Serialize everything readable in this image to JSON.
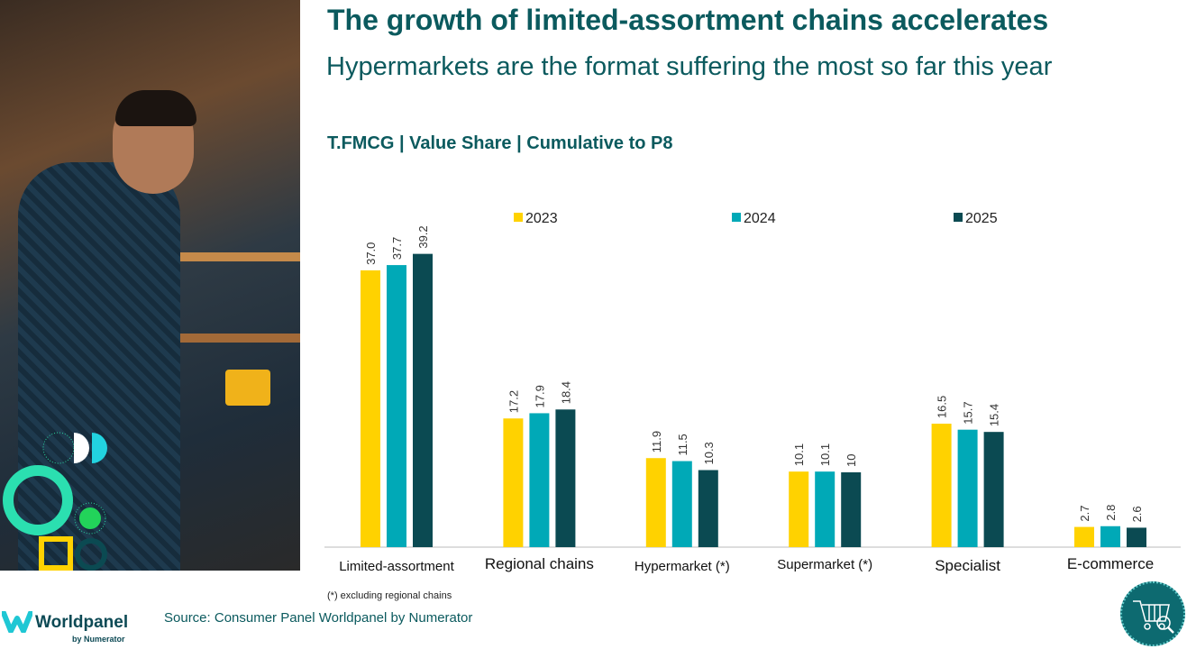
{
  "header": {
    "title": "The growth of limited-assortment chains accelerates",
    "subtitle": "Hypermarkets are the format suffering the most so far this year",
    "chart_subtitle": "T.FMCG | Value Share | Cumulative to P8"
  },
  "chart_data": {
    "type": "bar",
    "categories": [
      "Limited-assortment",
      "Regional chains",
      "Hypermarket (*)",
      "Supermarket (*)",
      "Specialist",
      "E-commerce"
    ],
    "series": [
      {
        "name": "2023",
        "color": "#ffd200",
        "values": [
          37.0,
          17.2,
          11.9,
          10.1,
          16.5,
          2.7
        ],
        "labels": [
          "37.0",
          "17.2",
          "11.9",
          "10.1",
          "16.5",
          "2.7"
        ]
      },
      {
        "name": "2024",
        "color": "#00a9b7",
        "values": [
          37.7,
          17.9,
          11.5,
          10.1,
          15.7,
          2.8
        ],
        "labels": [
          "37.7",
          "17.9",
          "11.5",
          "10.1",
          "15.7",
          "2.8"
        ]
      },
      {
        "name": "2025",
        "color": "#0b4a52",
        "values": [
          39.2,
          18.4,
          10.3,
          10,
          15.4,
          2.6
        ],
        "labels": [
          "39.2",
          "18.4",
          "10.3",
          "10",
          "15.4",
          "2.6"
        ]
      }
    ],
    "ylim": [
      0,
      40
    ],
    "grid": false,
    "legend": "top"
  },
  "footer": {
    "note": "(*) excluding regional chains",
    "source": "Source: Consumer Panel Worldpanel by Numerator",
    "logo_word": "Worldpanel",
    "logo_by": "by Numerator"
  },
  "icons": {
    "corner": "shopping-cart-search-icon"
  }
}
